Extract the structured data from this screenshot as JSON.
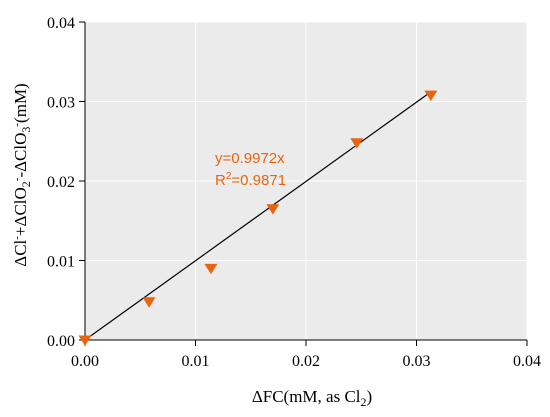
{
  "chart_data": {
    "type": "scatter",
    "xlabel_main": "ΔFC(mM, as Cl",
    "xlabel_sub": "2",
    "xlabel_end": ")",
    "ylabel_parts": {
      "p1": "ΔCl",
      "p2": "-",
      "p3": "+ΔClO",
      "p4": "2",
      "p5": "-",
      "p6": "-ΔClO",
      "p7": "3",
      "p8": "-",
      "p9": "(mM)"
    },
    "xlim": [
      0,
      0.04
    ],
    "ylim": [
      0,
      0.04
    ],
    "x_ticks": [
      "0.00",
      "0.01",
      "0.02",
      "0.03",
      "0.04"
    ],
    "y_ticks": [
      "0.00",
      "0.01",
      "0.02",
      "0.03",
      "0.04"
    ],
    "grid": true,
    "points": [
      {
        "x": 0.0,
        "y": 0.0
      },
      {
        "x": 0.0058,
        "y": 0.0048
      },
      {
        "x": 0.0114,
        "y": 0.009
      },
      {
        "x": 0.017,
        "y": 0.0165
      },
      {
        "x": 0.0246,
        "y": 0.0248
      },
      {
        "x": 0.0313,
        "y": 0.0308
      }
    ],
    "fit": {
      "slope": 0.9972,
      "x_range": [
        0,
        0.0313
      ]
    },
    "annotation_eq": "y=0.9972x",
    "annotation_r2_prefix": "R",
    "annotation_r2_sup": "2",
    "annotation_r2_value": "=0.9871",
    "colors": {
      "marker": "#e8640f",
      "fit_line": "#000000",
      "plot_bg": "#ebebeb",
      "grid": "#ffffff"
    }
  }
}
